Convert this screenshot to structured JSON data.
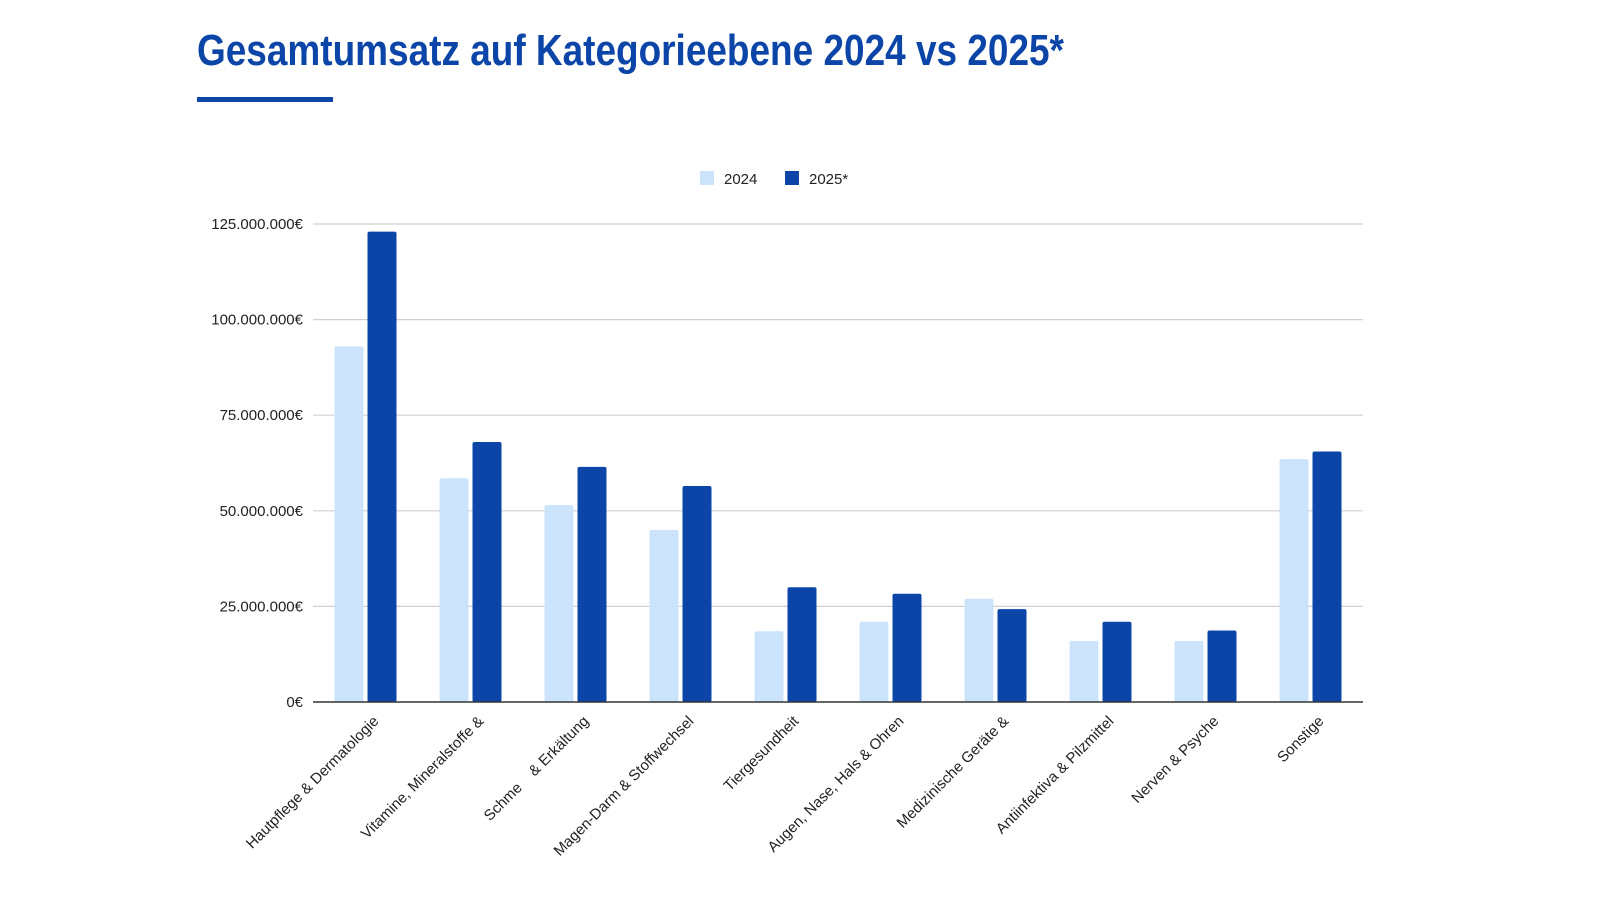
{
  "header": {
    "title": "Gesamtumsatz auf Kategorieebene 2024 vs 2025*"
  },
  "chart_data": {
    "type": "bar",
    "title": "Gesamtumsatz auf Kategorieebene 2024 vs 2025*",
    "xlabel": "",
    "ylabel": "",
    "ylim": [
      0,
      125000000
    ],
    "yticks": [
      0,
      25000000,
      50000000,
      75000000,
      100000000,
      125000000
    ],
    "ytick_labels": [
      "0€",
      "25.000.000€",
      "50.000.000€",
      "75.000.000€",
      "100.000.000€",
      "125.000.000€"
    ],
    "grid": true,
    "legend_position": "top-center",
    "categories": [
      "Hautpflege & Dermatologie",
      "Vitamine, Mineralstoffe &",
      "Schme    & Erkältung",
      "Magen-Darm & Stoffwechsel",
      "Tiergesundheit",
      "Augen, Nase, Hals & Ohren",
      "Medizinische Geräte &",
      "Antiinfektiva & Pilzmittel",
      "Nerven & Psyche",
      "Sonstige"
    ],
    "series": [
      {
        "name": "2024",
        "color": "#cce4fb",
        "values": [
          93000000,
          58500000,
          51500000,
          45000000,
          18500000,
          21000000,
          27000000,
          16000000,
          16000000,
          63500000
        ]
      },
      {
        "name": "2025*",
        "color": "#0b45a8",
        "values": [
          123000000,
          68000000,
          61500000,
          56500000,
          30000000,
          28300000,
          24300000,
          21000000,
          18700000,
          65500000
        ]
      }
    ]
  }
}
